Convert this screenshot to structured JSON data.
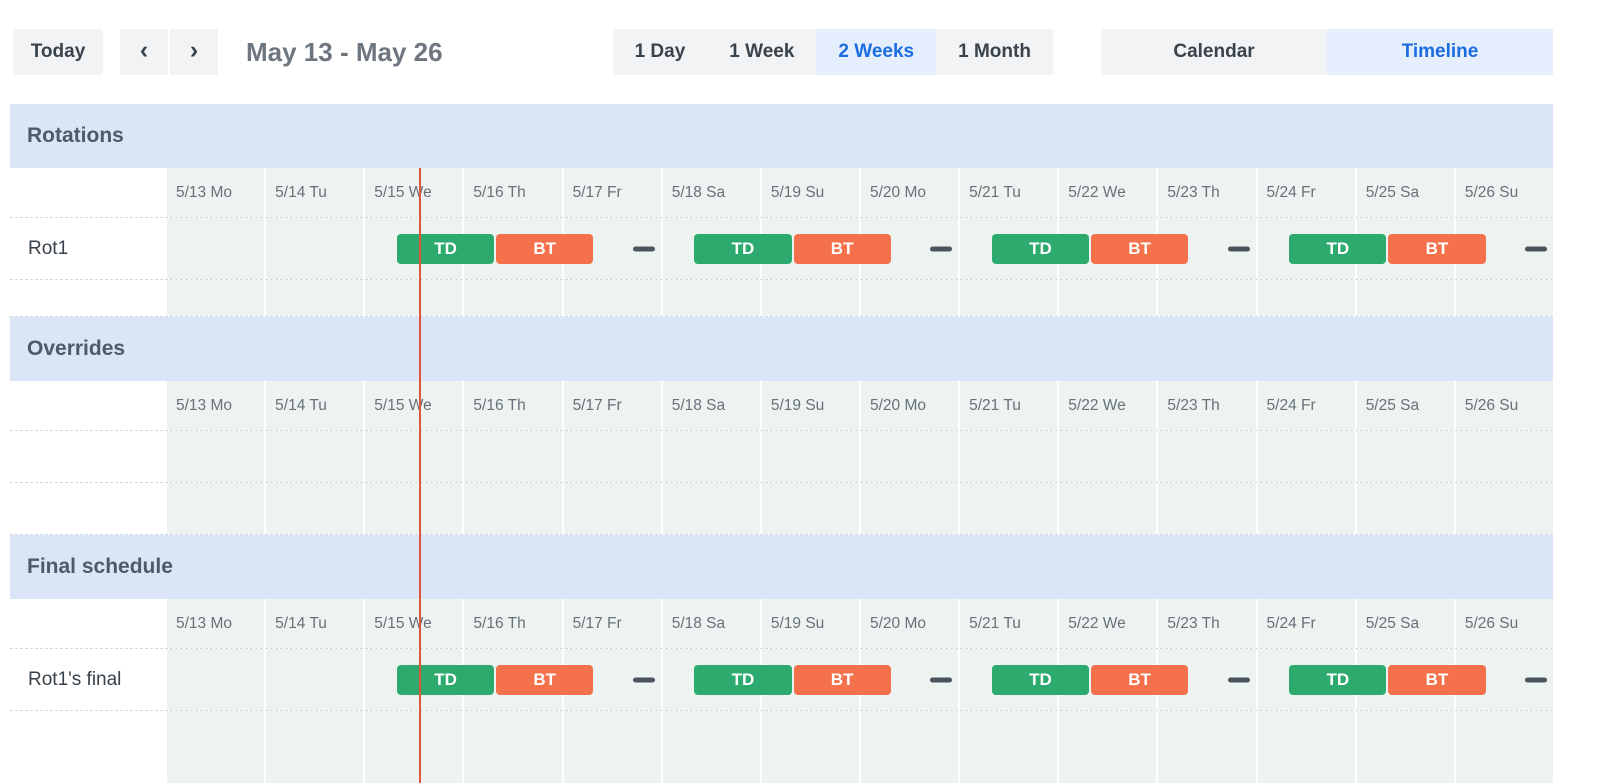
{
  "toolbar": {
    "today_label": "Today",
    "chevron_left": "‹",
    "chevron_right": "›",
    "date_range": "May 13 - May 26",
    "zoom_options": [
      {
        "label": "1 Day",
        "selected": false
      },
      {
        "label": "1 Week",
        "selected": false
      },
      {
        "label": "2 Weeks",
        "selected": true
      },
      {
        "label": "1 Month",
        "selected": false
      }
    ],
    "view_options": [
      {
        "label": "Calendar",
        "selected": false
      },
      {
        "label": "Timeline",
        "selected": true
      }
    ]
  },
  "colors": {
    "shift_green": "#2dab6e",
    "shift_orange": "#f4714b",
    "gap_dash": "#4a545c",
    "now_line": "#e0543c",
    "band_bg": "#dbe5f8",
    "cell_bg": "#edf3f1",
    "selected_bg": "#e4eefc",
    "selected_text": "#1c6ee0",
    "button_bg": "#f2f3f4",
    "button_text": "#39434c",
    "title_text": "#6e7780",
    "section_text": "#4e5a66",
    "day_text": "#68717a"
  },
  "timeline": {
    "days": [
      "5/13 Mo",
      "5/14 Tu",
      "5/15 We",
      "5/16 Th",
      "5/17 Fr",
      "5/18 Sa",
      "5/19 Su",
      "5/20 Mo",
      "5/21 Tu",
      "5/22 We",
      "5/23 Th",
      "5/24 Fr",
      "5/25 Sa",
      "5/26 Su"
    ],
    "now_day_offset": 2.56,
    "sections": [
      {
        "title": "Rotations",
        "rows": [
          {
            "label": "Rot1",
            "bars": [
              {
                "kind": "shift",
                "label": "TD",
                "color": "green",
                "start": 2.33,
                "length": 1
              },
              {
                "kind": "shift",
                "label": "BT",
                "color": "orange",
                "start": 3.33,
                "length": 1
              },
              {
                "kind": "gap",
                "start": 4.33,
                "length": 1
              },
              {
                "kind": "shift",
                "label": "TD",
                "color": "green",
                "start": 5.33,
                "length": 1
              },
              {
                "kind": "shift",
                "label": "BT",
                "color": "orange",
                "start": 6.33,
                "length": 1
              },
              {
                "kind": "gap",
                "start": 7.33,
                "length": 1
              },
              {
                "kind": "shift",
                "label": "TD",
                "color": "green",
                "start": 8.33,
                "length": 1
              },
              {
                "kind": "shift",
                "label": "BT",
                "color": "orange",
                "start": 9.33,
                "length": 1
              },
              {
                "kind": "gap",
                "start": 10.33,
                "length": 1
              },
              {
                "kind": "shift",
                "label": "TD",
                "color": "green",
                "start": 11.33,
                "length": 1
              },
              {
                "kind": "shift",
                "label": "BT",
                "color": "orange",
                "start": 12.33,
                "length": 1
              },
              {
                "kind": "gap",
                "start": 13.33,
                "length": 1
              }
            ]
          },
          {
            "label": "",
            "bars": []
          }
        ]
      },
      {
        "title": "Overrides",
        "rows": [
          {
            "label": "",
            "bars": []
          },
          {
            "label": "",
            "bars": []
          }
        ]
      },
      {
        "title": "Final schedule",
        "rows": [
          {
            "label": "Rot1's final",
            "bars": [
              {
                "kind": "shift",
                "label": "TD",
                "color": "green",
                "start": 2.33,
                "length": 1
              },
              {
                "kind": "shift",
                "label": "BT",
                "color": "orange",
                "start": 3.33,
                "length": 1
              },
              {
                "kind": "gap",
                "start": 4.33,
                "length": 1
              },
              {
                "kind": "shift",
                "label": "TD",
                "color": "green",
                "start": 5.33,
                "length": 1
              },
              {
                "kind": "shift",
                "label": "BT",
                "color": "orange",
                "start": 6.33,
                "length": 1
              },
              {
                "kind": "gap",
                "start": 7.33,
                "length": 1
              },
              {
                "kind": "shift",
                "label": "TD",
                "color": "green",
                "start": 8.33,
                "length": 1
              },
              {
                "kind": "shift",
                "label": "BT",
                "color": "orange",
                "start": 9.33,
                "length": 1
              },
              {
                "kind": "gap",
                "start": 10.33,
                "length": 1
              },
              {
                "kind": "shift",
                "label": "TD",
                "color": "green",
                "start": 11.33,
                "length": 1
              },
              {
                "kind": "shift",
                "label": "BT",
                "color": "orange",
                "start": 12.33,
                "length": 1
              },
              {
                "kind": "gap",
                "start": 13.33,
                "length": 1
              }
            ]
          },
          {
            "label": "",
            "bars": []
          }
        ]
      }
    ]
  }
}
